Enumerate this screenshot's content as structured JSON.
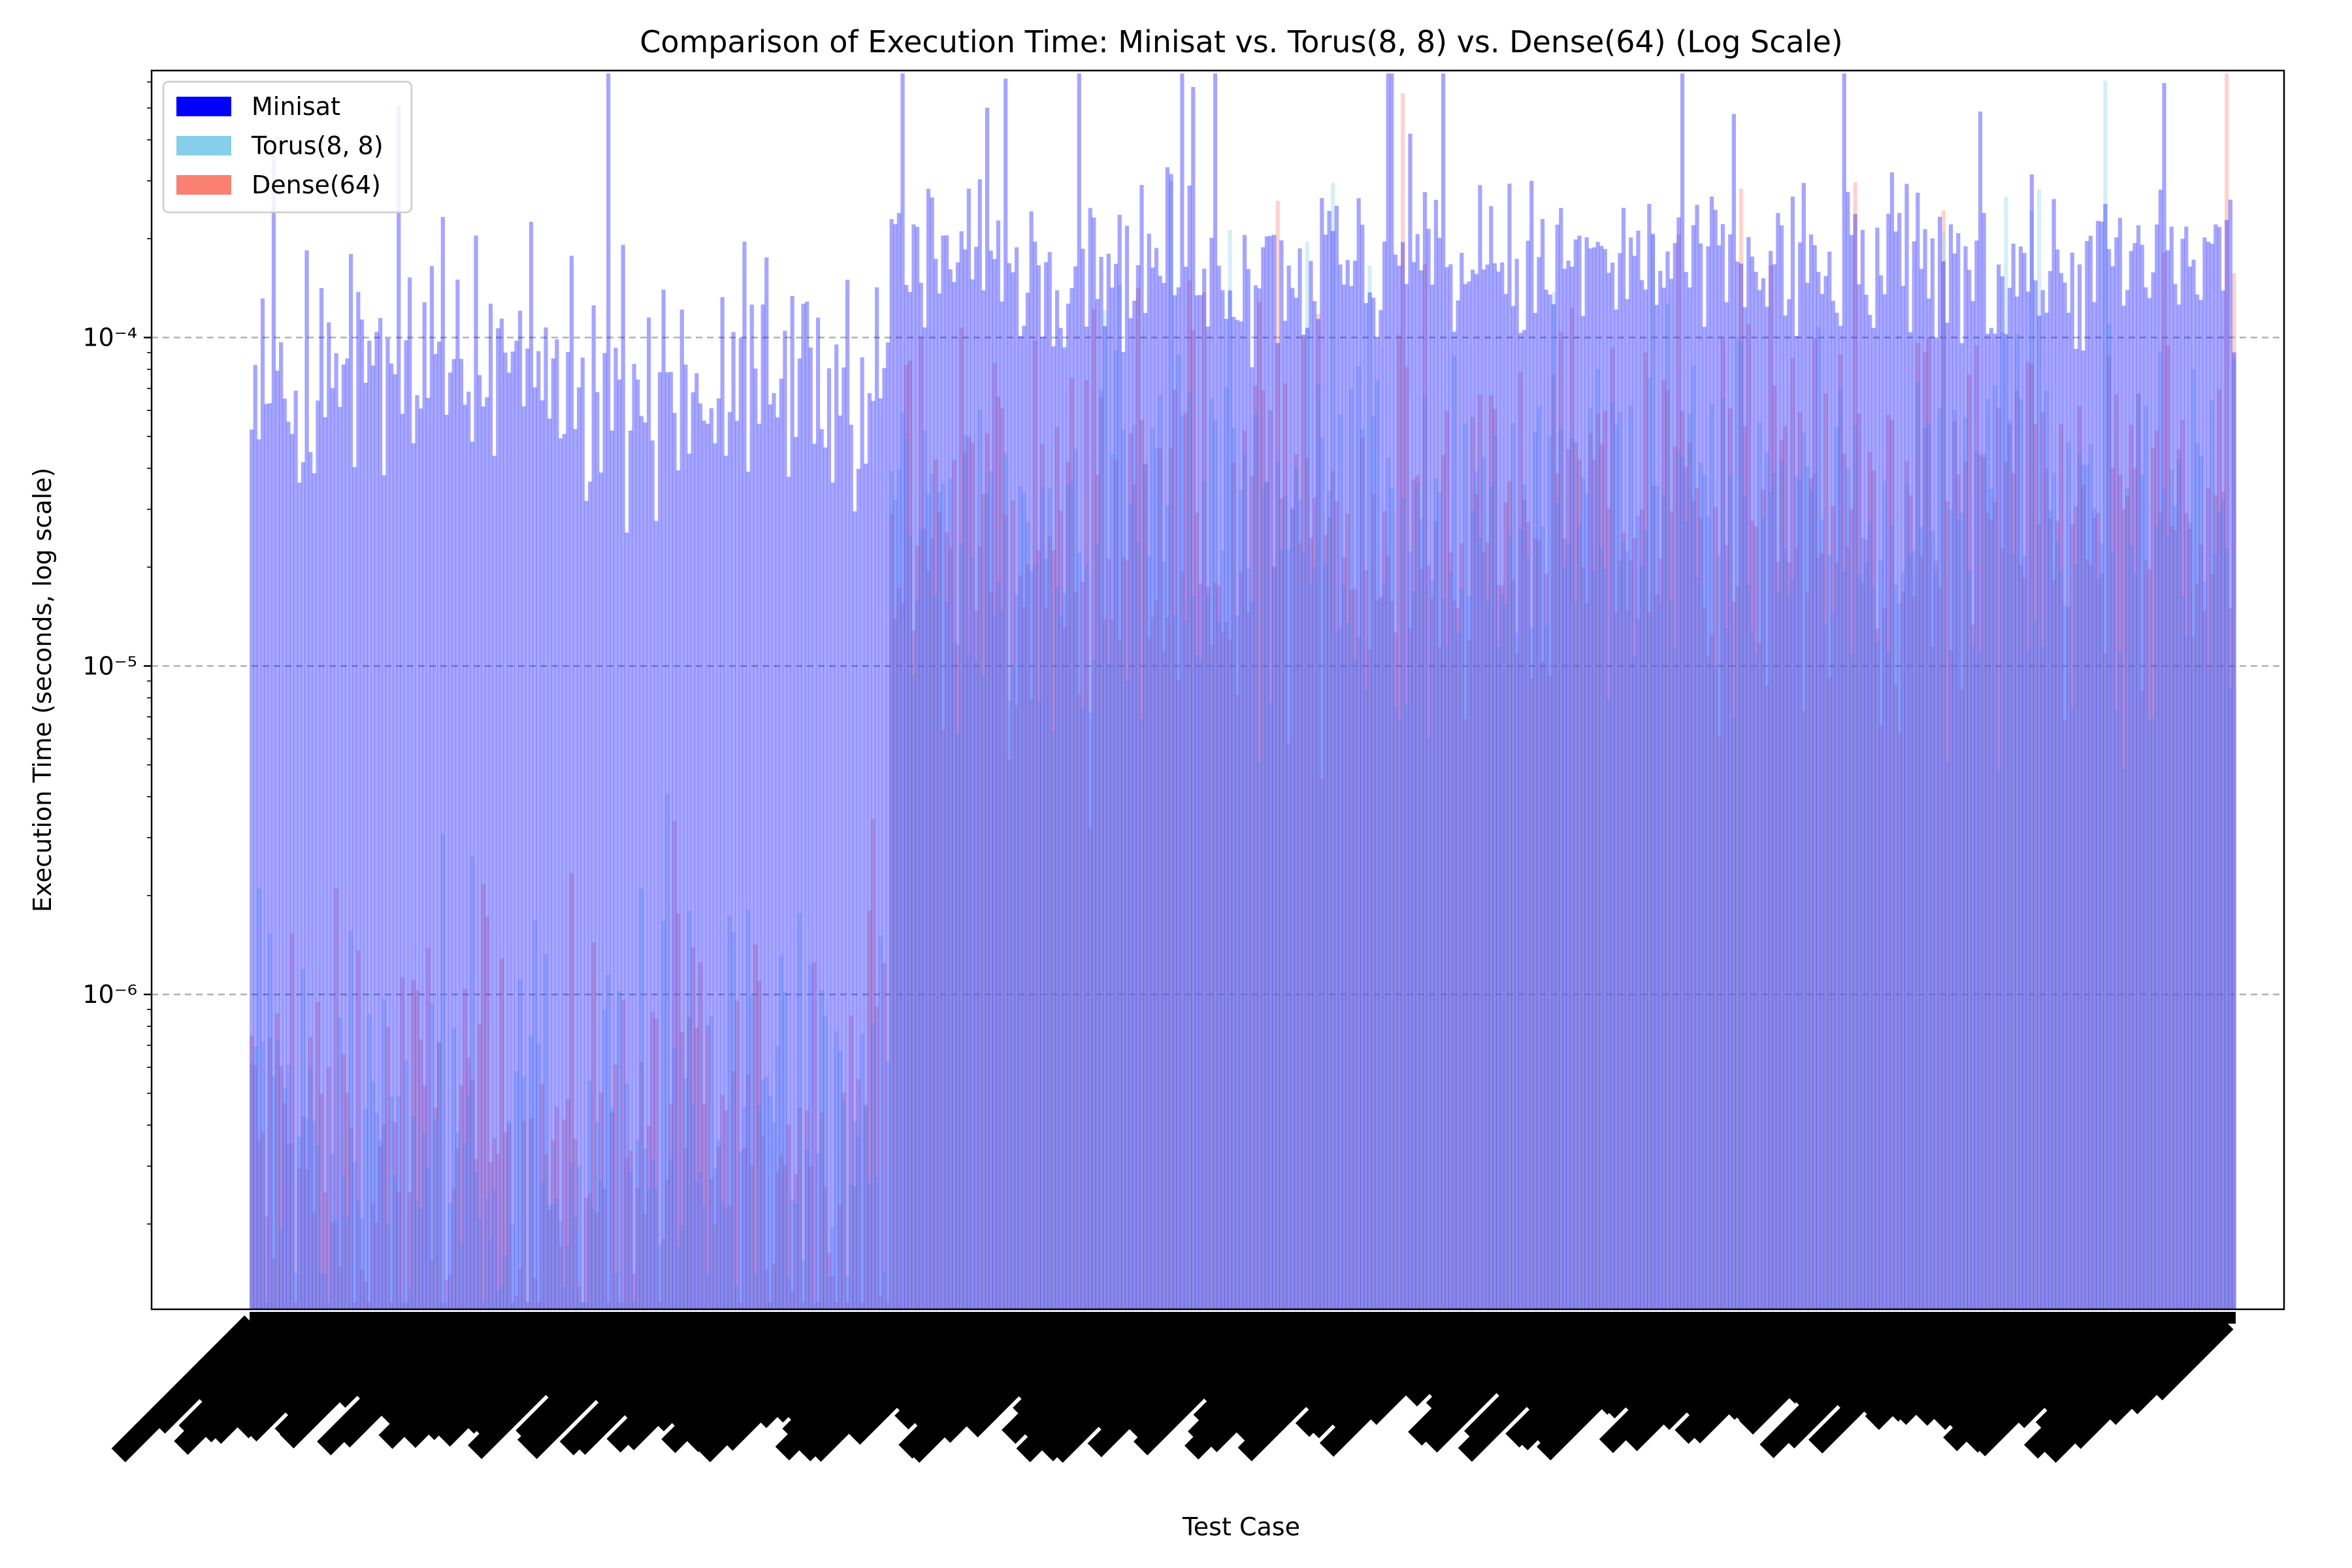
{
  "chart_data": {
    "type": "bar",
    "title": "Comparison of Execution Time: Minisat vs. Torus(8, 8) vs. Dense(64) (Log Scale)",
    "xlabel": "Test Case",
    "ylabel": "Execution Time (seconds, log scale)",
    "yscale": "log",
    "ylim": [
      1.1e-07,
      0.00065
    ],
    "yticks": [
      {
        "value": 1e-06,
        "label": "10⁻⁶"
      },
      {
        "value": 1e-05,
        "label": "10⁻⁵"
      },
      {
        "value": 0.0001,
        "label": "10⁻⁴"
      }
    ],
    "grid": "y-major-dashed",
    "legend_position": "top-left",
    "n_test_cases": 540,
    "x_tick_labels": "540 overlapping rotated test-case names (illegible)",
    "series": [
      {
        "name": "Minisat",
        "color": "#0000ff",
        "alpha": 0.35
      },
      {
        "name": "Torus(8, 8)",
        "color": "#87ceeb",
        "alpha": 0.35
      },
      {
        "name": "Dense(64)",
        "color": "#fa8072",
        "alpha": 0.35
      }
    ],
    "groups": [
      {
        "start": 0,
        "end": 174,
        "minisat_median": 7.5e-05,
        "minisat_spread": 0.18,
        "torus_median": 3.5e-07,
        "torus_spread": 0.35,
        "dense_median": 3.3e-07,
        "dense_spread": 0.35
      },
      {
        "start": 175,
        "end": 269,
        "minisat_median": 0.000175,
        "minisat_spread": 0.13,
        "torus_median": 2.5e-05,
        "torus_spread": 0.3,
        "dense_median": 2.5e-05,
        "dense_spread": 0.3
      },
      {
        "start": 270,
        "end": 540,
        "minisat_median": 0.000165,
        "minisat_spread": 0.13,
        "torus_median": 2.8e-05,
        "torus_spread": 0.3,
        "dense_median": 2.8e-05,
        "dense_spread": 0.3
      }
    ]
  }
}
